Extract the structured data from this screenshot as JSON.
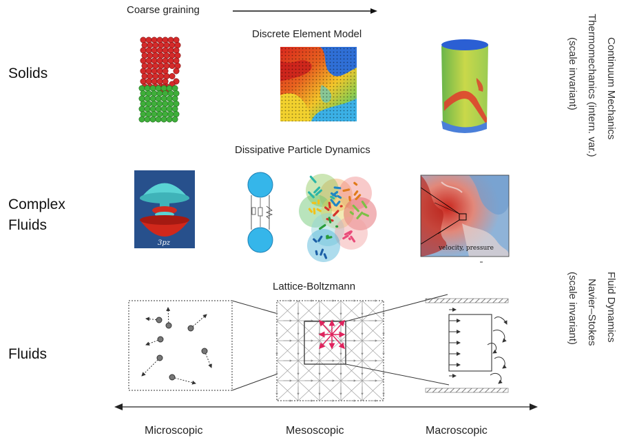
{
  "header": {
    "arrow_label": "Coarse graining"
  },
  "rows": {
    "solids": "Solids",
    "complex_fluids_line1": "Complex",
    "complex_fluids_line2": "Fluids",
    "fluids": "Fluids"
  },
  "methods": {
    "dem": "Discrete Element Model",
    "dpd": "Dissipative Particle  Dynamics",
    "lb": "Lattice-Boltzmann"
  },
  "images": {
    "orbital_label": "3pz",
    "velocity_label": "velocity, pressure"
  },
  "right_labels": {
    "continuum": [
      "Continuum Mechanics",
      "Thermomechanics (intern. var.)",
      "(scale invariant)"
    ],
    "fluid": [
      "Fluid Dynamics",
      "Navier–Stokes",
      "(scale invariant)"
    ]
  },
  "scales": [
    "Microscopic",
    "Mesoscopic",
    "Macroscopic"
  ],
  "colors": {
    "particle_red": "#d42a2a",
    "particle_green": "#3fae3a",
    "bead_blue": "#35b6ea",
    "orbital_bg": "#2a4e86",
    "lb_arrow": "#e0245e",
    "lb_grid": "#9a9a9a"
  }
}
